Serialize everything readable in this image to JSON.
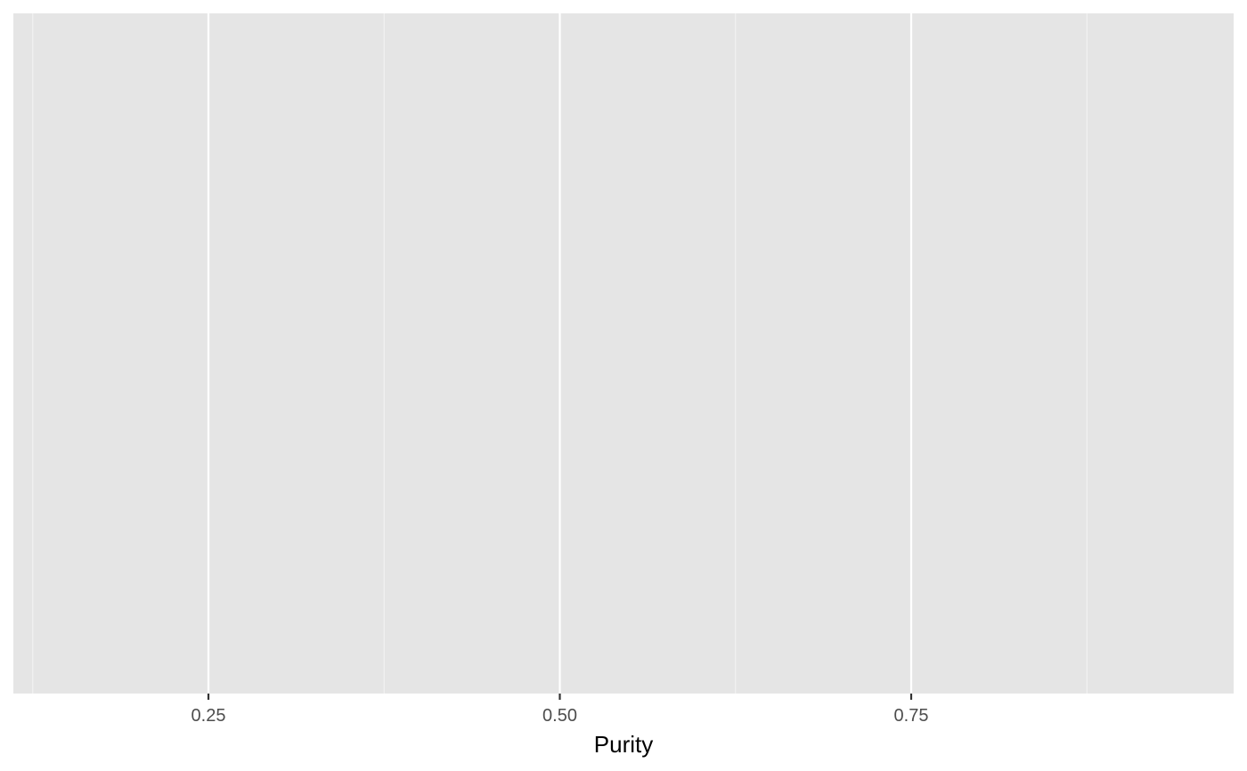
{
  "chart_data": {
    "type": "histogram",
    "title": "",
    "xlabel": "Purity",
    "ylabel": "",
    "xlim": [
      0.1,
      0.97
    ],
    "x_major_ticks": [
      0.25,
      0.5,
      0.75
    ],
    "x_tick_labels": [
      "0.25",
      "0.50",
      "0.75"
    ],
    "x_minor_ticks": [
      0.125,
      0.375,
      0.625,
      0.875
    ],
    "y_axis_visible": false,
    "series": [],
    "legend": "none"
  },
  "colors": {
    "panel_background": "#e5e5e5",
    "grid_major": "#ffffff",
    "grid_minor": "#f2f2f2",
    "tick_mark": "#333333",
    "tick_label": "#4d4d4d",
    "axis_title": "#000000"
  }
}
